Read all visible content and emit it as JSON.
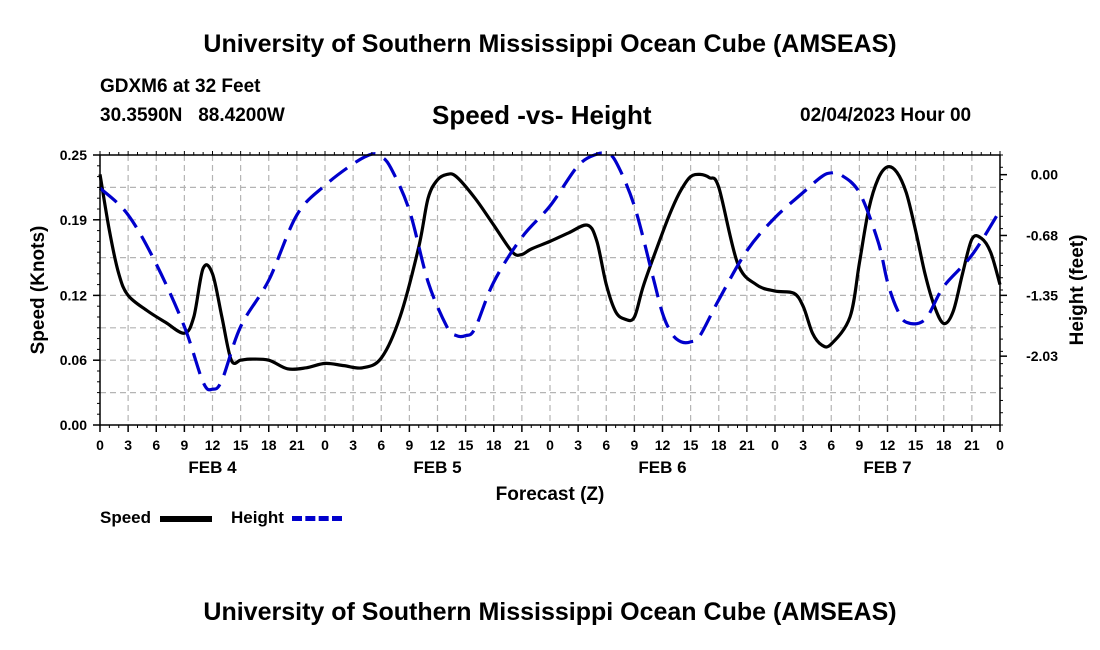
{
  "header": {
    "title": "University of Southern Mississippi Ocean Cube (AMSEAS)",
    "station": "GDXM6 at 32 Feet",
    "coords": "30.3590N   88.4200W",
    "subtitle": "Speed -vs- Height",
    "datetime": "02/04/2023 Hour 00"
  },
  "footer": {
    "title": "University of Southern Mississippi Ocean Cube (AMSEAS)"
  },
  "legend": {
    "speed_label": "Speed",
    "height_label": "Height"
  },
  "colors": {
    "speed": "#000000",
    "height": "#0000cc",
    "grid": "#b4b4b4"
  },
  "chart_data": {
    "type": "line",
    "title": "Speed -vs- Height",
    "xlabel": "Forecast (Z)",
    "ylabel": "Speed (Knots)",
    "y2label": "Height (feet)",
    "xlim": [
      0,
      96
    ],
    "ylim": [
      0,
      0.25
    ],
    "y2lim": [
      -2.8,
      0.22
    ],
    "x_ticks": [
      0,
      3,
      6,
      9,
      12,
      15,
      18,
      21,
      24,
      27,
      30,
      33,
      36,
      39,
      42,
      45,
      48,
      51,
      54,
      57,
      60,
      63,
      66,
      69,
      72,
      75,
      78,
      81,
      84,
      87,
      90,
      93,
      96
    ],
    "x_tick_labels": [
      "0",
      "3",
      "6",
      "9",
      "12",
      "15",
      "18",
      "21",
      "0",
      "3",
      "6",
      "9",
      "12",
      "15",
      "18",
      "21",
      "0",
      "3",
      "6",
      "9",
      "12",
      "15",
      "18",
      "21",
      "0",
      "3",
      "6",
      "9",
      "12",
      "15",
      "18",
      "21",
      "0"
    ],
    "day_labels": [
      {
        "label": "FEB 4",
        "x": 12
      },
      {
        "label": "FEB 5",
        "x": 36
      },
      {
        "label": "FEB 6",
        "x": 60
      },
      {
        "label": "FEB 7",
        "x": 84
      }
    ],
    "y_ticks": [
      0.0,
      0.06,
      0.12,
      0.19,
      0.25
    ],
    "y_tick_labels": [
      "0.00",
      "0.06",
      "0.12",
      "0.19",
      "0.25"
    ],
    "y2_ticks": [
      0.0,
      -0.68,
      -1.35,
      -2.03
    ],
    "y2_tick_labels": [
      "0.00",
      "-0.68",
      "-1.35",
      "-2.03"
    ],
    "grid": true,
    "legend_position": "bottom-left",
    "series": [
      {
        "name": "Speed",
        "axis": "left",
        "style": "solid",
        "x": [
          0,
          1,
          2,
          3,
          5,
          7,
          9,
          10,
          11,
          12,
          13,
          14,
          15,
          16,
          18,
          20,
          22,
          24,
          26,
          28,
          30,
          32,
          34,
          35,
          36,
          37,
          38,
          40,
          42,
          44,
          45,
          46,
          48,
          50,
          52,
          53,
          54,
          55,
          56,
          57,
          58,
          60,
          61,
          62,
          63,
          64,
          65,
          66,
          68,
          70,
          72,
          74,
          75,
          76,
          77,
          78,
          80,
          81,
          82,
          83,
          84,
          85,
          86,
          87,
          88,
          89,
          90,
          91,
          92,
          93,
          94,
          95,
          96
        ],
        "y": [
          0.232,
          0.18,
          0.14,
          0.12,
          0.106,
          0.095,
          0.085,
          0.1,
          0.145,
          0.14,
          0.1,
          0.06,
          0.06,
          0.061,
          0.06,
          0.052,
          0.053,
          0.057,
          0.055,
          0.053,
          0.062,
          0.1,
          0.165,
          0.21,
          0.227,
          0.232,
          0.23,
          0.21,
          0.185,
          0.16,
          0.158,
          0.163,
          0.17,
          0.178,
          0.185,
          0.17,
          0.13,
          0.105,
          0.098,
          0.1,
          0.13,
          0.178,
          0.2,
          0.218,
          0.23,
          0.232,
          0.229,
          0.22,
          0.15,
          0.13,
          0.124,
          0.122,
          0.11,
          0.085,
          0.074,
          0.075,
          0.1,
          0.15,
          0.2,
          0.228,
          0.239,
          0.234,
          0.215,
          0.18,
          0.14,
          0.11,
          0.094,
          0.105,
          0.14,
          0.172,
          0.173,
          0.16,
          0.13
        ]
      },
      {
        "name": "Height",
        "axis": "right",
        "style": "dashed",
        "x": [
          0,
          3,
          6,
          9,
          11,
          12,
          13,
          15,
          18,
          21,
          24,
          27,
          29,
          30,
          31,
          33,
          35,
          37,
          38,
          39,
          40,
          42,
          45,
          48,
          51,
          53,
          54,
          55,
          57,
          59,
          60,
          61,
          62,
          63,
          64,
          66,
          69,
          72,
          75,
          77,
          78,
          79,
          81,
          83,
          84,
          85,
          86,
          88,
          90,
          93,
          96
        ],
        "y": [
          -0.15,
          -0.45,
          -1.0,
          -1.7,
          -2.32,
          -2.4,
          -2.3,
          -1.7,
          -1.18,
          -0.45,
          -0.12,
          0.12,
          0.23,
          0.2,
          0.08,
          -0.4,
          -1.2,
          -1.7,
          -1.8,
          -1.8,
          -1.72,
          -1.2,
          -0.7,
          -0.35,
          0.1,
          0.23,
          0.23,
          0.15,
          -0.35,
          -1.15,
          -1.55,
          -1.78,
          -1.87,
          -1.87,
          -1.8,
          -1.4,
          -0.85,
          -0.48,
          -0.2,
          -0.02,
          0.02,
          0.0,
          -0.2,
          -0.75,
          -1.2,
          -1.5,
          -1.65,
          -1.62,
          -1.25,
          -0.9,
          -0.4
        ]
      }
    ]
  }
}
